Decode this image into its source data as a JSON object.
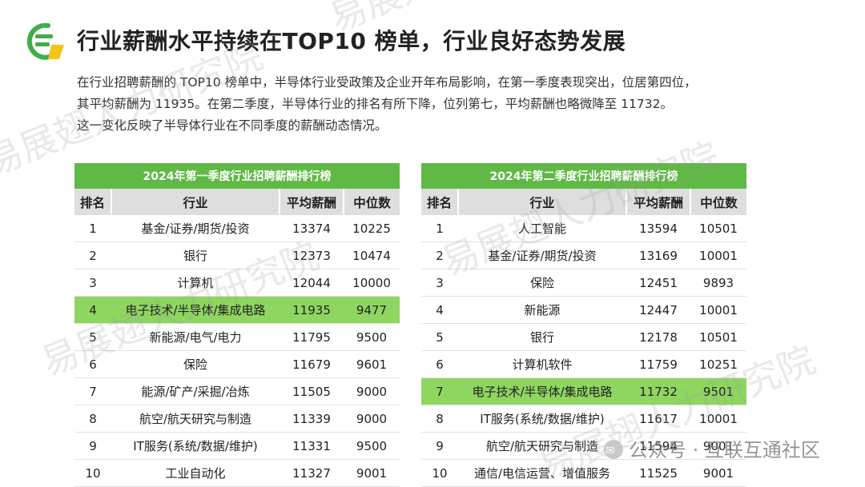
{
  "header": {
    "title": "行业薪酬水平持续在TOP10 榜单，行业良好态势发展",
    "brand_colors": {
      "green": "#3fae49",
      "yellow": "#f4c21b"
    }
  },
  "intro": {
    "lines": [
      "在行业招聘薪酬的 TOP10 榜单中，半导体行业受政策及企业开年布局影响，在第一季度表现突出，位居第四位，",
      "其平均薪酬为 11935。在第二季度，半导体行业的排名有所下降，位列第七，平均薪酬也略微降至 11732。",
      "这一变化反映了半导体行业在不同季度的薪酬动态情况。"
    ]
  },
  "tables": [
    {
      "caption": "2024年第一季度行业招聘薪酬排行榜",
      "columns": [
        "排名",
        "行业",
        "平均薪酬",
        "中位数"
      ],
      "highlight_rank": "4",
      "rows": [
        [
          "1",
          "基金/证券/期货/投资",
          "13374",
          "10225"
        ],
        [
          "2",
          "银行",
          "12373",
          "10474"
        ],
        [
          "3",
          "计算机",
          "12044",
          "10000"
        ],
        [
          "4",
          "电子技术/半导体/集成电路",
          "11935",
          "9477"
        ],
        [
          "5",
          "新能源/电气/电力",
          "11795",
          "9500"
        ],
        [
          "6",
          "保险",
          "11679",
          "9601"
        ],
        [
          "7",
          "能源/矿产/采掘/冶炼",
          "11505",
          "9000"
        ],
        [
          "8",
          "航空/航天研究与制造",
          "11339",
          "9000"
        ],
        [
          "9",
          "IT服务(系统/数据/维护)",
          "11331",
          "9500"
        ],
        [
          "10",
          "工业自动化",
          "11327",
          "9001"
        ]
      ]
    },
    {
      "caption": "2024年第二季度行业招聘薪酬排行榜",
      "columns": [
        "排名",
        "行业",
        "平均薪酬",
        "中位数"
      ],
      "highlight_rank": "7",
      "rows": [
        [
          "1",
          "人工智能",
          "13594",
          "10501"
        ],
        [
          "2",
          "基金/证券/期货/投资",
          "13169",
          "10001"
        ],
        [
          "3",
          "保险",
          "12451",
          "9893"
        ],
        [
          "4",
          "新能源",
          "12447",
          "10001"
        ],
        [
          "5",
          "银行",
          "12178",
          "10501"
        ],
        [
          "6",
          "计算机软件",
          "11759",
          "10251"
        ],
        [
          "7",
          "电子技术/半导体/集成电路",
          "11732",
          "9501"
        ],
        [
          "8",
          "IT服务(系统/数据/维护)",
          "11617",
          "10001"
        ],
        [
          "9",
          "航空/航天研究与制造",
          "11594",
          "9001"
        ],
        [
          "10",
          "通信/电信运营、增值服务",
          "11525",
          "9001"
        ]
      ]
    }
  ],
  "watermark": {
    "text": "易展翅人力研究院",
    "footer": "公众号 · 互联互通社区"
  }
}
